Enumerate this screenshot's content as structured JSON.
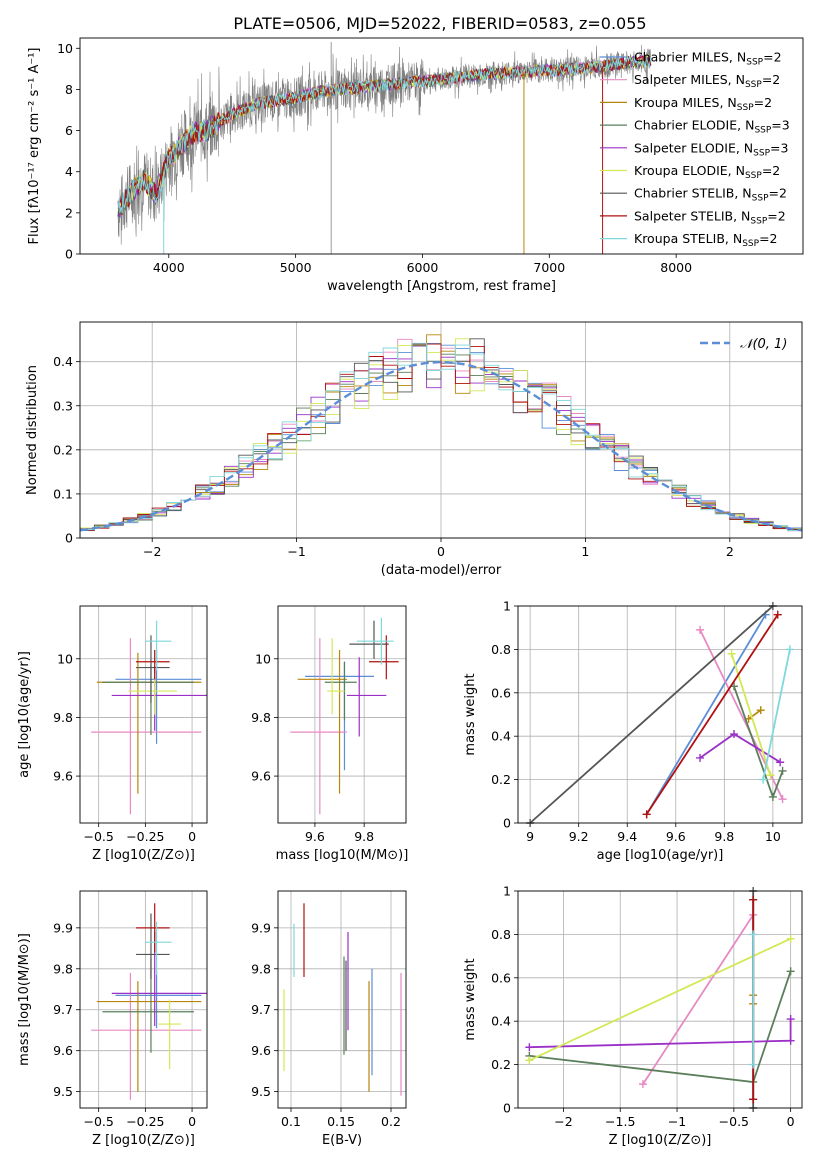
{
  "title": "PLATE=0506, MJD=52022, FIBERID=0583, z=0.055",
  "models": [
    {
      "name": "Chabrier MILES",
      "nssp": "2",
      "color": "#5b8ed6"
    },
    {
      "name": "Salpeter MILES",
      "nssp": "2",
      "color": "#e78ac3"
    },
    {
      "name": "Kroupa MILES",
      "nssp": "2",
      "color": "#b8860b"
    },
    {
      "name": "Chabrier ELODIE",
      "nssp": "3",
      "color": "#5a7f5a"
    },
    {
      "name": "Salpeter ELODIE",
      "nssp": "3",
      "color": "#9b30c8"
    },
    {
      "name": "Kroupa ELODIE",
      "nssp": "2",
      "color": "#d4e857"
    },
    {
      "name": "Chabrier STELIB",
      "nssp": "2",
      "color": "#555555"
    },
    {
      "name": "Salpeter STELIB",
      "nssp": "2",
      "color": "#b01010"
    },
    {
      "name": "Kroupa STELIB",
      "nssp": "2",
      "color": "#7fd8dc"
    }
  ],
  "chart_data": [
    {
      "id": "spectrum",
      "type": "line",
      "title": "PLATE=0506, MJD=52022, FIBERID=0583, z=0.055",
      "xlabel": "wavelength [Angstrom, rest frame]",
      "ylabel": "Flux [f_λ 10^-17 erg cm^-2 s^-1 A^-1]",
      "xlim": [
        3300,
        9000
      ],
      "ylim": [
        0,
        10.5
      ],
      "xticks": [
        4000,
        5000,
        6000,
        7000,
        8000
      ],
      "yticks": [
        0,
        2,
        4,
        6,
        8,
        10
      ],
      "data_color": "#808080",
      "data_x_range": [
        3600,
        7800
      ],
      "data_profile_x": [
        3600,
        3700,
        3800,
        3900,
        4000,
        4100,
        4200,
        4300,
        4500,
        4700,
        5000,
        5200,
        5500,
        5800,
        6000,
        6300,
        6600,
        6900,
        7200,
        7400,
        7600,
        7800
      ],
      "data_profile_y": [
        2.1,
        3.0,
        3.6,
        2.9,
        4.6,
        5.3,
        5.9,
        6.0,
        6.8,
        7.3,
        7.6,
        7.9,
        8.1,
        8.3,
        8.4,
        8.6,
        8.8,
        8.9,
        9.0,
        9.1,
        9.3,
        9.4
      ],
      "model_range": [
        3600,
        7800
      ]
    },
    {
      "id": "residuals",
      "type": "histogram",
      "xlabel": "(data-model)/error",
      "ylabel": "Normed distribution",
      "xlim": [
        -2.5,
        2.5
      ],
      "ylim": [
        0,
        0.49
      ],
      "xticks": [
        -2,
        -1,
        0,
        1,
        2
      ],
      "yticks": [
        0,
        0.1,
        0.2,
        0.3,
        0.4
      ],
      "bin_width": 0.1,
      "legend": "𝒩(0, 1)",
      "legend_position": "top-right",
      "gauss_color": "#5b8ed6"
    },
    {
      "id": "age-vs-Z",
      "type": "errorbar",
      "xlabel": "Z [log10(Z/Z⊙)]",
      "ylabel": "age [log10(age/yr)]",
      "xlim": [
        -0.6,
        0.08
      ],
      "ylim": [
        9.44,
        10.18
      ],
      "xticks": [
        -0.5,
        -0.25,
        0.0
      ],
      "yticks": [
        9.6,
        9.8,
        10.0
      ],
      "points": [
        {
          "x": -0.19,
          "y": 9.93,
          "xerr": [
            0.22,
            0.24
          ],
          "yerr": [
            0.22,
            0.1
          ]
        },
        {
          "x": -0.33,
          "y": 9.75,
          "xerr": [
            0.21,
            0.38
          ],
          "yerr": [
            0.28,
            0.32
          ]
        },
        {
          "x": -0.29,
          "y": 9.92,
          "xerr": [
            0.22,
            0.34
          ],
          "yerr": [
            0.38,
            0.1
          ]
        },
        {
          "x": -0.22,
          "y": 9.92,
          "xerr": [
            0.26,
            0.23
          ],
          "yerr": [
            0.18,
            0.06
          ]
        },
        {
          "x": -0.2,
          "y": 9.875,
          "xerr": [
            0.23,
            0.28
          ],
          "yerr": [
            0.12,
            0.1
          ]
        },
        {
          "x": -0.2,
          "y": 9.89,
          "xerr": [
            0.14,
            0.12
          ],
          "yerr": [
            0.08,
            0.06
          ]
        },
        {
          "x": -0.22,
          "y": 9.97,
          "xerr": [
            0.08,
            0.1
          ],
          "yerr": [
            0.12,
            0.11
          ]
        },
        {
          "x": -0.2,
          "y": 9.99,
          "xerr": [
            0.1,
            0.08
          ],
          "yerr": [
            0.06,
            0.04
          ]
        },
        {
          "x": -0.19,
          "y": 10.06,
          "xerr": [
            0.06,
            0.08
          ],
          "yerr": [
            0.1,
            0.07
          ]
        }
      ]
    },
    {
      "id": "age-vs-mass",
      "type": "errorbar",
      "xlabel": "mass [log10(M/M⊙)]",
      "ylabel": "",
      "xlim": [
        9.45,
        9.97
      ],
      "ylim": [
        9.44,
        10.18
      ],
      "xticks": [
        9.6,
        9.8
      ],
      "yticks": [
        9.6,
        9.8,
        10.0
      ],
      "points": [
        {
          "x": 9.72,
          "y": 9.94,
          "xerr": [
            0.16,
            0.12
          ],
          "yerr": [
            0.32,
            0.05
          ]
        },
        {
          "x": 9.62,
          "y": 9.75,
          "xerr": [
            0.12,
            0.11
          ],
          "yerr": [
            0.28,
            0.32
          ]
        },
        {
          "x": 9.7,
          "y": 9.93,
          "xerr": [
            0.17,
            0.03
          ],
          "yerr": [
            0.39,
            0.1
          ]
        },
        {
          "x": 9.72,
          "y": 9.92,
          "xerr": [
            0.08,
            0.05
          ],
          "yerr": [
            0.13,
            0.07
          ]
        },
        {
          "x": 9.78,
          "y": 9.875,
          "xerr": [
            0.05,
            0.11
          ],
          "yerr": [
            0.14,
            0.13
          ]
        },
        {
          "x": 9.67,
          "y": 9.89,
          "xerr": [
            0.02,
            0.05
          ],
          "yerr": [
            0.08,
            0.18
          ]
        },
        {
          "x": 9.84,
          "y": 10.05,
          "xerr": [
            0.1,
            0.06
          ],
          "yerr": [
            0.05,
            0.08
          ]
        },
        {
          "x": 9.89,
          "y": 9.99,
          "xerr": [
            0.07,
            0.05
          ],
          "yerr": [
            0.06,
            0.09
          ]
        },
        {
          "x": 9.87,
          "y": 10.06,
          "xerr": [
            0.1,
            0.05
          ],
          "yerr": [
            0.08,
            0.08
          ]
        }
      ]
    },
    {
      "id": "massweight-vs-age",
      "type": "line",
      "xlabel": "age [log10(age/yr)]",
      "ylabel": "mass weight",
      "xlim": [
        8.95,
        10.12
      ],
      "ylim": [
        0.0,
        1.0
      ],
      "xticks": [
        9.0,
        9.2,
        9.4,
        9.6,
        9.8,
        10.0
      ],
      "yticks": [
        0.0,
        0.2,
        0.4,
        0.6,
        0.8,
        1.0
      ],
      "series": [
        {
          "x": [
            9.48,
            9.97
          ],
          "y": [
            0.04,
            0.96
          ]
        },
        {
          "x": [
            9.7,
            10.04
          ],
          "y": [
            0.89,
            0.11
          ]
        },
        {
          "x": [
            9.9,
            9.95
          ],
          "y": [
            0.48,
            0.52
          ]
        },
        {
          "x": [
            9.84,
            10.0,
            10.04
          ],
          "y": [
            0.63,
            0.12,
            0.24
          ]
        },
        {
          "x": [
            9.7,
            9.84,
            10.03
          ],
          "y": [
            0.3,
            0.41,
            0.28
          ]
        },
        {
          "x": [
            9.83,
            9.99
          ],
          "y": [
            0.78,
            0.22
          ]
        },
        {
          "x": [
            9.0,
            10.0
          ],
          "y": [
            0.0,
            1.0
          ]
        },
        {
          "x": [
            9.48,
            10.02
          ],
          "y": [
            0.04,
            0.96
          ]
        },
        {
          "x": [
            9.96,
            10.07
          ],
          "y": [
            0.2,
            0.8
          ]
        }
      ]
    },
    {
      "id": "mass-vs-Z",
      "type": "errorbar",
      "xlabel": "Z [log10(Z/Z⊙)]",
      "ylabel": "mass [log10(M/M⊙)]",
      "xlim": [
        -0.6,
        0.08
      ],
      "ylim": [
        9.46,
        9.99
      ],
      "xticks": [
        -0.5,
        -0.25,
        0.0
      ],
      "yticks": [
        9.5,
        9.6,
        9.7,
        9.8,
        9.9
      ],
      "points": [
        {
          "x": -0.19,
          "y": 9.735,
          "xerr": [
            0.22,
            0.24
          ],
          "yerr": [
            0.08,
            0.06
          ]
        },
        {
          "x": -0.33,
          "y": 9.65,
          "xerr": [
            0.21,
            0.38
          ],
          "yerr": [
            0.17,
            0.14
          ]
        },
        {
          "x": -0.29,
          "y": 9.72,
          "xerr": [
            0.22,
            0.34
          ],
          "yerr": [
            0.22,
            0.05
          ]
        },
        {
          "x": -0.22,
          "y": 9.695,
          "xerr": [
            0.26,
            0.23
          ],
          "yerr": [
            0.1,
            0.13
          ]
        },
        {
          "x": -0.2,
          "y": 9.74,
          "xerr": [
            0.23,
            0.28
          ],
          "yerr": [
            0.08,
            0.15
          ]
        },
        {
          "x": -0.12,
          "y": 9.665,
          "xerr": [
            0.06,
            0.06
          ],
          "yerr": [
            0.11,
            0.06
          ]
        },
        {
          "x": -0.22,
          "y": 9.835,
          "xerr": [
            0.08,
            0.1
          ],
          "yerr": [
            0.06,
            0.1
          ]
        },
        {
          "x": -0.2,
          "y": 9.9,
          "xerr": [
            0.1,
            0.08
          ],
          "yerr": [
            0.06,
            0.06
          ]
        },
        {
          "x": -0.19,
          "y": 9.865,
          "xerr": [
            0.06,
            0.08
          ],
          "yerr": [
            0.08,
            0.05
          ]
        }
      ]
    },
    {
      "id": "mass-vs-EBV",
      "type": "errorbar",
      "xlabel": "E(B-V)",
      "ylabel": "",
      "xlim": [
        0.087,
        0.215
      ],
      "ylim": [
        9.46,
        9.99
      ],
      "xticks": [
        0.1,
        0.15,
        0.2
      ],
      "yticks": [
        9.5,
        9.6,
        9.7,
        9.8,
        9.9
      ],
      "points": [
        {
          "x": 0.181,
          "y": 9.71,
          "xerr": [
            0,
            0
          ],
          "yerr": [
            0.17,
            0.09
          ]
        },
        {
          "x": 0.21,
          "y": 9.63,
          "xerr": [
            0,
            0
          ],
          "yerr": [
            0.14,
            0.16
          ]
        },
        {
          "x": 0.178,
          "y": 9.63,
          "xerr": [
            0,
            0
          ],
          "yerr": [
            0.13,
            0.14
          ]
        },
        {
          "x": 0.153,
          "y": 9.71,
          "xerr": [
            0,
            0
          ],
          "yerr": [
            0.12,
            0.12
          ]
        },
        {
          "x": 0.157,
          "y": 9.8,
          "xerr": [
            0,
            0
          ],
          "yerr": [
            0.15,
            0.09
          ]
        },
        {
          "x": 0.093,
          "y": 9.65,
          "xerr": [
            0,
            0
          ],
          "yerr": [
            0.1,
            0.1
          ]
        },
        {
          "x": 0.155,
          "y": 9.72,
          "xerr": [
            0,
            0
          ],
          "yerr": [
            0.12,
            0.1
          ]
        },
        {
          "x": 0.113,
          "y": 9.86,
          "xerr": [
            0,
            0
          ],
          "yerr": [
            0.08,
            0.1
          ]
        },
        {
          "x": 0.103,
          "y": 9.85,
          "xerr": [
            0,
            0
          ],
          "yerr": [
            0.07,
            0.06
          ]
        }
      ]
    },
    {
      "id": "massweight-vs-Z",
      "type": "line",
      "xlabel": "Z [log10(Z/Z⊙)]",
      "ylabel": "mass weight",
      "xlim": [
        -2.4,
        0.1
      ],
      "ylim": [
        0.0,
        1.0
      ],
      "xticks": [
        -2.0,
        -1.5,
        -1.0,
        -0.5,
        0.0
      ],
      "yticks": [
        0.0,
        0.2,
        0.4,
        0.6,
        0.8,
        1.0
      ],
      "series": [
        {
          "x": [
            -0.33,
            -0.33
          ],
          "y": [
            0.04,
            0.96
          ]
        },
        {
          "x": [
            -1.3,
            -0.33
          ],
          "y": [
            0.11,
            0.89
          ]
        },
        {
          "x": [
            -0.33,
            -0.33
          ],
          "y": [
            0.48,
            0.52
          ]
        },
        {
          "x": [
            -2.3,
            -0.33,
            0.0
          ],
          "y": [
            0.24,
            0.12,
            0.63
          ]
        },
        {
          "x": [
            -2.3,
            0.0,
            0.0
          ],
          "y": [
            0.28,
            0.31,
            0.41
          ]
        },
        {
          "x": [
            -2.3,
            0.0
          ],
          "y": [
            0.22,
            0.78
          ]
        },
        {
          "x": [
            -0.33,
            -0.33
          ],
          "y": [
            0.0,
            1.0
          ]
        },
        {
          "x": [
            -0.33,
            -0.33
          ],
          "y": [
            0.04,
            0.96
          ]
        },
        {
          "x": [
            -0.33,
            -0.33
          ],
          "y": [
            0.2,
            0.8
          ]
        }
      ]
    }
  ]
}
